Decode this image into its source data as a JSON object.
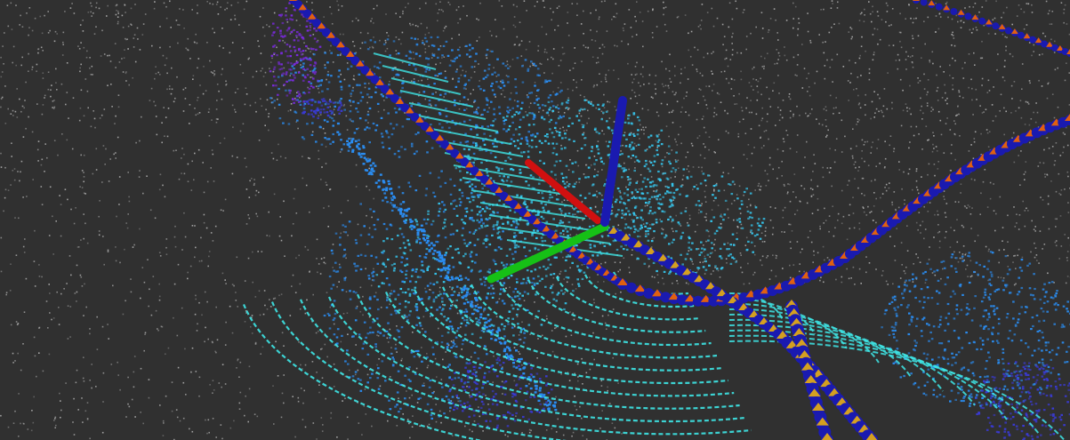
{
  "viewer": {
    "background_color": "#303030",
    "point_cloud_palette": {
      "map_points": "#b4b4b4",
      "ground_rings": "#3ee6e6",
      "near_points": "#35c8f0",
      "mid_points": "#2a8cf0",
      "far_points": "#3a3ad8",
      "distant_points": "#7a2ae0"
    },
    "frame_axes": {
      "x_axis_color": "#d01010",
      "y_axis_color": "#16c016",
      "z_axis_color": "#1a1ab0"
    },
    "trajectories": [
      {
        "marker_primary": "#1a1ab0",
        "marker_accent": "#e06010"
      },
      {
        "marker_primary": "#1a1ab0",
        "marker_accent": "#d4a020"
      }
    ]
  }
}
